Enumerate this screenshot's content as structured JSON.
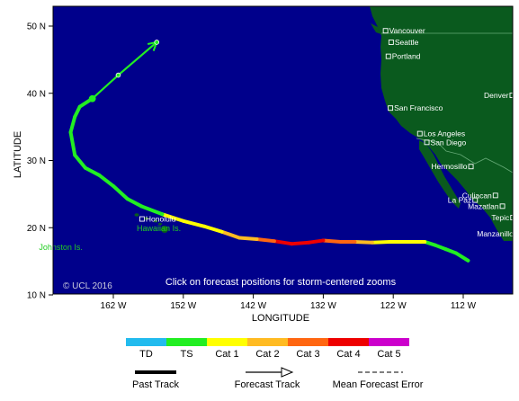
{
  "map": {
    "x_axis_title": "LONGITUDE",
    "y_axis_title": "LATITUDE",
    "ocean_color": "#00008b",
    "land_color": "#0a5a1e",
    "x_ticks": [
      {
        "lon": -162,
        "label": "162 W"
      },
      {
        "lon": -152,
        "label": "152 W"
      },
      {
        "lon": -142,
        "label": "142 W"
      },
      {
        "lon": -132,
        "label": "132 W"
      },
      {
        "lon": -122,
        "label": "122 W"
      },
      {
        "lon": -112,
        "label": "112 W"
      }
    ],
    "y_ticks": [
      {
        "lat": 50,
        "label": "50 N"
      },
      {
        "lat": 40,
        "label": "40 N"
      },
      {
        "lat": 30,
        "label": "30 N"
      },
      {
        "lat": 20,
        "label": "20 N"
      },
      {
        "lat": 10,
        "label": "10 N"
      }
    ],
    "cities": [
      {
        "name": "Vancouver",
        "lon": -123.1,
        "lat": 49.3
      },
      {
        "name": "Seattle",
        "lon": -122.3,
        "lat": 47.6
      },
      {
        "name": "Portland",
        "lon": -122.7,
        "lat": 45.5
      },
      {
        "name": "Denver",
        "lon": -105.0,
        "lat": 39.7
      },
      {
        "name": "San Francisco",
        "lon": -122.4,
        "lat": 37.8
      },
      {
        "name": "Los Angeles",
        "lon": -118.2,
        "lat": 34.0
      },
      {
        "name": "San Diego",
        "lon": -117.2,
        "lat": 32.7
      },
      {
        "name": "Hermosillo",
        "lon": -110.9,
        "lat": 29.1
      },
      {
        "name": "Culiacan",
        "lon": -107.4,
        "lat": 24.8
      },
      {
        "name": "La Paz",
        "lon": -110.3,
        "lat": 24.1
      },
      {
        "name": "Mazatlan",
        "lon": -106.4,
        "lat": 23.2
      },
      {
        "name": "Tepic",
        "lon": -104.9,
        "lat": 21.5
      },
      {
        "name": "Manzanillo",
        "lon": -104.3,
        "lat": 19.1
      },
      {
        "name": "Honolulu",
        "lon": -157.9,
        "lat": 21.3
      }
    ],
    "islands": [
      {
        "name": "Hawaiian Is.",
        "lon": -155.5,
        "lat": 19.5
      },
      {
        "name": "Johnston Is.",
        "lon": -169.5,
        "lat": 16.7
      }
    ],
    "overlay_text": "Click on forecast positions for storm-centered zooms",
    "copyright": "© UCL 2016",
    "past_track": [
      {
        "lon": -111.3,
        "lat": 15.1,
        "cat": "TD"
      },
      {
        "lon": -113.0,
        "lat": 16.2,
        "cat": "TS"
      },
      {
        "lon": -114.5,
        "lat": 16.8,
        "cat": "TS"
      },
      {
        "lon": -116.0,
        "lat": 17.4,
        "cat": "TS"
      },
      {
        "lon": -117.5,
        "lat": 17.9,
        "cat": "TS"
      },
      {
        "lon": -120.0,
        "lat": 17.9,
        "cat": "Cat 1"
      },
      {
        "lon": -122.5,
        "lat": 17.9,
        "cat": "Cat 1"
      },
      {
        "lon": -125.0,
        "lat": 17.8,
        "cat": "Cat 1"
      },
      {
        "lon": -127.5,
        "lat": 17.9,
        "cat": "Cat 2"
      },
      {
        "lon": -129.5,
        "lat": 17.9,
        "cat": "Cat 3"
      },
      {
        "lon": -132.0,
        "lat": 18.1,
        "cat": "Cat 3"
      },
      {
        "lon": -134.0,
        "lat": 17.8,
        "cat": "Cat 4"
      },
      {
        "lon": -136.5,
        "lat": 17.6,
        "cat": "Cat 4"
      },
      {
        "lon": -139.0,
        "lat": 18.0,
        "cat": "Cat 4"
      },
      {
        "lon": -141.5,
        "lat": 18.3,
        "cat": "Cat 3"
      },
      {
        "lon": -144.0,
        "lat": 18.5,
        "cat": "Cat 2"
      },
      {
        "lon": -146.5,
        "lat": 19.4,
        "cat": "Cat 2"
      },
      {
        "lon": -149.0,
        "lat": 20.2,
        "cat": "Cat 1"
      },
      {
        "lon": -152.0,
        "lat": 21.0,
        "cat": "Cat 1"
      },
      {
        "lon": -155.0,
        "lat": 22.0,
        "cat": "Cat 1"
      },
      {
        "lon": -158.0,
        "lat": 23.2,
        "cat": "TS"
      },
      {
        "lon": -160.0,
        "lat": 24.3,
        "cat": "TS"
      },
      {
        "lon": -162.0,
        "lat": 26.2,
        "cat": "TS"
      },
      {
        "lon": -164.0,
        "lat": 27.8,
        "cat": "TS"
      },
      {
        "lon": -166.0,
        "lat": 28.9,
        "cat": "TS"
      },
      {
        "lon": -167.5,
        "lat": 30.8,
        "cat": "TS"
      },
      {
        "lon": -168.1,
        "lat": 34.2,
        "cat": "TS"
      },
      {
        "lon": -167.5,
        "lat": 36.5,
        "cat": "TS"
      },
      {
        "lon": -166.8,
        "lat": 38.0,
        "cat": "TS"
      },
      {
        "lon": -165.0,
        "lat": 39.2,
        "cat": "TS"
      }
    ],
    "forecast_track": [
      {
        "lon": -165.0,
        "lat": 39.2,
        "cat": "TS"
      },
      {
        "lon": -161.3,
        "lat": 42.7,
        "cat": "TS"
      },
      {
        "lon": -155.8,
        "lat": 47.6,
        "cat": "TS"
      }
    ],
    "forecast_points": [
      {
        "lon": -165.0,
        "lat": 39.2
      },
      {
        "lon": -161.3,
        "lat": 42.7
      },
      {
        "lon": -155.8,
        "lat": 47.6
      }
    ]
  },
  "legend": {
    "categories": [
      {
        "label": "TD",
        "color": "#22bbee"
      },
      {
        "label": "TS",
        "color": "#22ee22"
      },
      {
        "label": "Cat 1",
        "color": "#ffff00"
      },
      {
        "label": "Cat 2",
        "color": "#ffbb22"
      },
      {
        "label": "Cat 3",
        "color": "#ff6611"
      },
      {
        "label": "Cat 4",
        "color": "#ee0000"
      },
      {
        "label": "Cat 5",
        "color": "#cc00cc"
      }
    ],
    "past_track_label": "Past Track",
    "forecast_track_label": "Forecast Track",
    "mean_error_label": "Mean Forecast Error"
  }
}
